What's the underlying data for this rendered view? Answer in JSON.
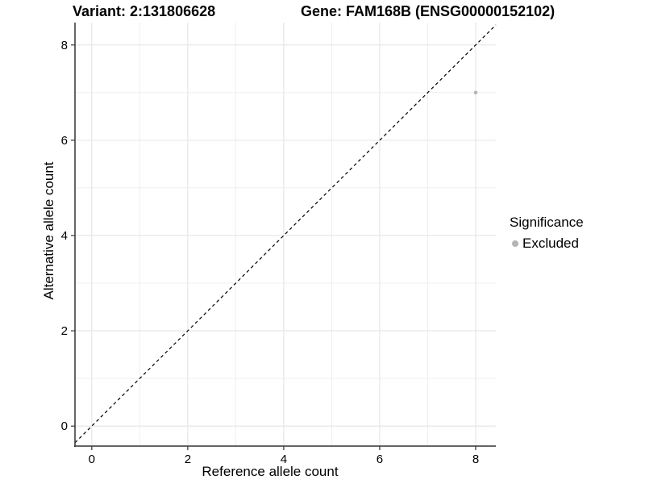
{
  "titles": {
    "variant": "Variant: 2:131806628",
    "gene": "Gene: FAM168B (ENSG00000152102)"
  },
  "chart_data": {
    "type": "scatter",
    "title_left": "Variant: 2:131806628",
    "title_right": "Gene: FAM168B (ENSG00000152102)",
    "xlabel": "Reference allele count",
    "ylabel": "Alternative allele count",
    "x_ticks": [
      0,
      2,
      4,
      6,
      8
    ],
    "y_ticks": [
      0,
      2,
      4,
      6,
      8
    ],
    "x_minor_ticks": [
      1,
      3,
      5,
      7
    ],
    "y_minor_ticks": [
      1,
      3,
      5,
      7
    ],
    "xlim": [
      -0.35,
      8.42
    ],
    "ylim": [
      -0.42,
      8.47
    ],
    "grid": "major+minor",
    "legend_position": "right",
    "series": [
      {
        "name": "Excluded",
        "color": "#b5b5b5",
        "points": [
          {
            "x": 8,
            "y": 7
          }
        ]
      }
    ],
    "abline": {
      "slope": 1,
      "intercept": 0,
      "style": "dashed",
      "color": "#000000"
    }
  },
  "legend": {
    "title": "Significance",
    "items": [
      {
        "label": "Excluded",
        "color": "#b5b5b5"
      }
    ]
  },
  "colors": {
    "background": "#ffffff",
    "grid_major": "#e4e4e4",
    "grid_minor": "#efefef",
    "axis_line": "#333333",
    "tick": "#333333",
    "text": "#000000",
    "point": "#b5b5b5"
  }
}
